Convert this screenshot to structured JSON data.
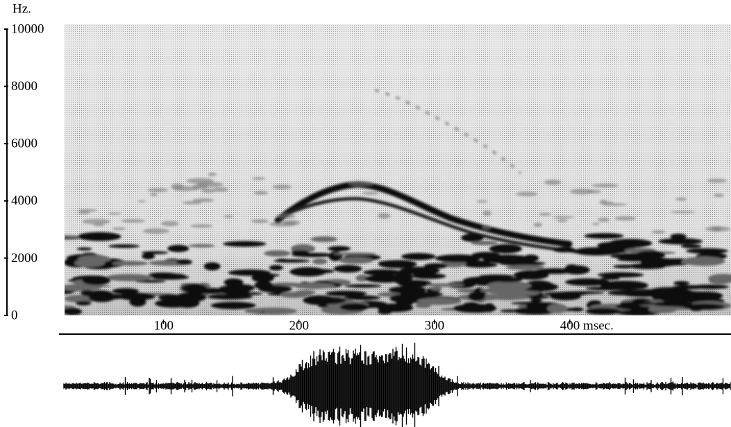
{
  "chart_data": {
    "type": "spectrogram",
    "y_label": "Hz.",
    "xlim": [
      27,
      519
    ],
    "xticks": [
      100,
      200,
      300,
      {
        "value": 400,
        "label": "400 msec."
      }
    ],
    "ylim": [
      0,
      10000
    ],
    "yticks": [
      0,
      2000,
      4000,
      6000,
      8000,
      10000
    ]
  }
}
